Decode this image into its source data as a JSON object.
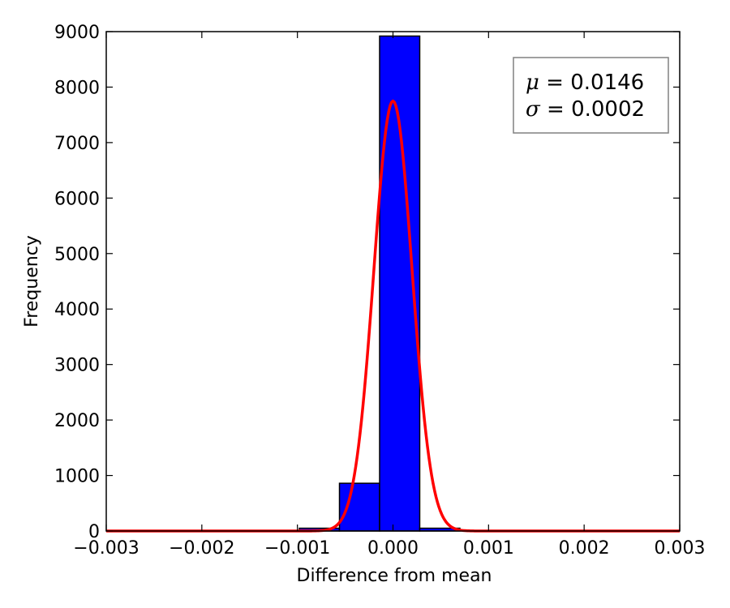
{
  "chart_data": {
    "type": "bar",
    "title": "",
    "xlabel": "Difference from mean",
    "ylabel": "Frequency",
    "xlim": [
      -0.003,
      0.003
    ],
    "ylim": [
      0,
      9000
    ],
    "grid": false,
    "x_ticks": [
      -0.003,
      -0.002,
      -0.001,
      0.0,
      0.001,
      0.002,
      0.003
    ],
    "x_tick_labels": [
      "−0.003",
      "−0.002",
      "−0.001",
      "0.000",
      "0.001",
      "0.002",
      "0.003"
    ],
    "y_ticks": [
      0,
      1000,
      2000,
      3000,
      4000,
      5000,
      6000,
      7000,
      8000,
      9000
    ],
    "y_tick_labels": [
      "0",
      "1000",
      "2000",
      "3000",
      "4000",
      "5000",
      "6000",
      "7000",
      "8000",
      "9000"
    ],
    "histogram": {
      "color": "#0000ff",
      "edge_color": "#000000",
      "bins": [
        {
          "x0": -0.00098,
          "x1": -0.00056,
          "value": 50
        },
        {
          "x0": -0.00056,
          "x1": -0.00014,
          "value": 860
        },
        {
          "x0": -0.00014,
          "x1": 0.00028,
          "value": 8920
        },
        {
          "x0": 0.00028,
          "x1": 0.0007,
          "value": 50
        }
      ]
    },
    "fit_curve": {
      "type": "gaussian",
      "color": "#ff0000",
      "mean": 0.0,
      "sigma": 0.0002,
      "peak": 7750
    },
    "legend": {
      "placement": "top-right",
      "lines": [
        {
          "symbol": "μ",
          "text": " = 0.0146"
        },
        {
          "symbol": "σ",
          "text": " = 0.0002"
        }
      ]
    }
  }
}
